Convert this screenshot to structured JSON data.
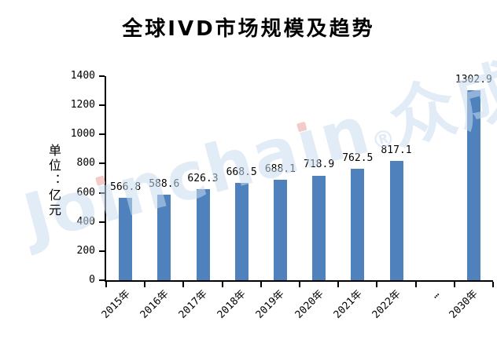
{
  "watermark": {
    "text": "Joinchain",
    "reg": "®",
    "cjk": "众成数科",
    "color": "rgba(202,221,241,0.55)",
    "dot_color": "rgba(236,166,166,0.6)"
  },
  "chart_data": {
    "type": "bar",
    "title": "全球IVD市场规模及趋势",
    "ylabel": "单位：亿元",
    "xlabel": "",
    "categories": [
      "2015年",
      "2016年",
      "2017年",
      "2018年",
      "2019年",
      "2020年",
      "2021年",
      "2022年",
      "…",
      "2030年"
    ],
    "values": [
      566.8,
      588.6,
      626.3,
      668.5,
      688.1,
      718.9,
      762.5,
      817.1,
      null,
      1302.9
    ],
    "value_labels": [
      "566.8",
      "588.6",
      "626.3",
      "668.5",
      "688.1",
      "718.9",
      "762.5",
      "817.1",
      "",
      "1302.9"
    ],
    "ylim": [
      0,
      1400
    ],
    "yticks": [
      0,
      200,
      400,
      600,
      800,
      1000,
      1200,
      1400
    ],
    "bar_color": "#4F81BD",
    "axis_color": "#000000",
    "grid": false,
    "legend": null
  }
}
